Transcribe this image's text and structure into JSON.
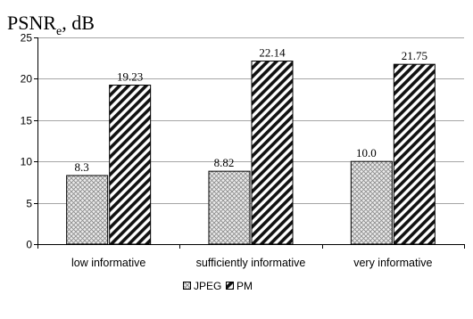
{
  "chart_data": {
    "type": "bar",
    "ylabel": {
      "main": "PSNR",
      "subscript": "e",
      "suffix": ", dB"
    },
    "ylim": [
      0,
      25
    ],
    "yticks": [
      0,
      5,
      10,
      15,
      20,
      25
    ],
    "grid": true,
    "legend_position": "bottom",
    "categories": [
      "low informative",
      "sufficiently informative",
      "very informative"
    ],
    "series": [
      {
        "name": "JPEG",
        "values": [
          8.3,
          8.82,
          10.0
        ],
        "labels": [
          "8.3",
          "8.82",
          "10.0"
        ],
        "pattern": "crosshatch",
        "color": "#d9d9d9"
      },
      {
        "name": "PM",
        "values": [
          19.23,
          22.14,
          21.75
        ],
        "labels": [
          "19.23",
          "22.14",
          "21.75"
        ],
        "pattern": "diagonal",
        "color": "#000000"
      }
    ]
  }
}
